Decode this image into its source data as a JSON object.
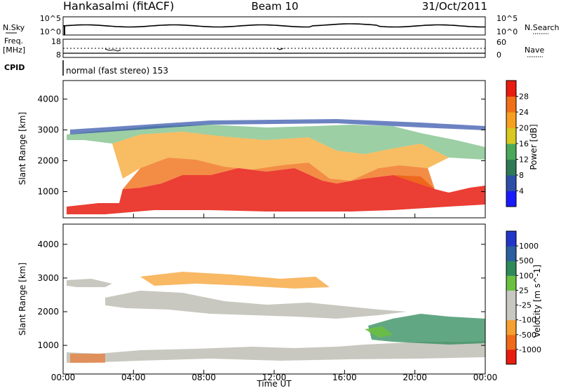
{
  "header": {
    "station": "Hankasalmi (fitACF)",
    "beam": "Beam 10",
    "date": "31/Oct/2011"
  },
  "noise_panel": {
    "left_label": "N.Sky",
    "right_label": "N.Search",
    "left_ticks": [
      "10^5",
      "10^0"
    ],
    "right_ticks": [
      "10^5",
      "10^0"
    ]
  },
  "freq_panel": {
    "left_label_1": "Freq.",
    "left_label_2": "[MHz]",
    "right_label": "Nave",
    "left_ticks": [
      "18",
      "8"
    ],
    "right_ticks": [
      "60",
      "0"
    ]
  },
  "cpid": {
    "label": "CPID",
    "value": "normal (fast stereo) 153"
  },
  "colors": {
    "power_scale": [
      "#1a1aff",
      "#2d4fa8",
      "#2f7a55",
      "#4aa85a",
      "#d8c820",
      "#f5a020",
      "#f07018",
      "#e81c10"
    ],
    "velocity_scale": [
      "#e81c10",
      "#f06a18",
      "#f5a030",
      "#c8c8c0",
      "#c8c8c0",
      "#6ac040",
      "#2e8a5a",
      "#2a5fa0",
      "#2236c8"
    ],
    "power_fill": "#f08a18",
    "ground_scatter": "#c8c8c0"
  },
  "chart_data": [
    {
      "type": "heatmap",
      "title": "Power",
      "ylabel": "Slant Range [km]",
      "yticks": [
        "1000",
        "2000",
        "3000",
        "4000"
      ],
      "ylim": [
        150,
        4600
      ],
      "colorbar": {
        "label": "Power [dB]",
        "ticks": [
          "4",
          "8",
          "12",
          "16",
          "20",
          "24",
          "28"
        ],
        "range": [
          0,
          32
        ]
      }
    },
    {
      "type": "heatmap",
      "title": "Velocity",
      "ylabel": "Slant Range [km]",
      "yticks": [
        "1000",
        "2000",
        "3000",
        "4000"
      ],
      "ylim": [
        150,
        4600
      ],
      "colorbar": {
        "label": "Velocity [m s^-1]",
        "ticks": [
          "-1000",
          "-500",
          "-100",
          "-25",
          "25",
          "100",
          "500",
          "1000"
        ]
      }
    }
  ],
  "x_axis": {
    "label": "Time UT",
    "ticks": [
      "00:00",
      "04:00",
      "08:00",
      "12:00",
      "16:00",
      "20:00",
      "00:00"
    ],
    "range_hours": [
      0,
      24
    ]
  }
}
